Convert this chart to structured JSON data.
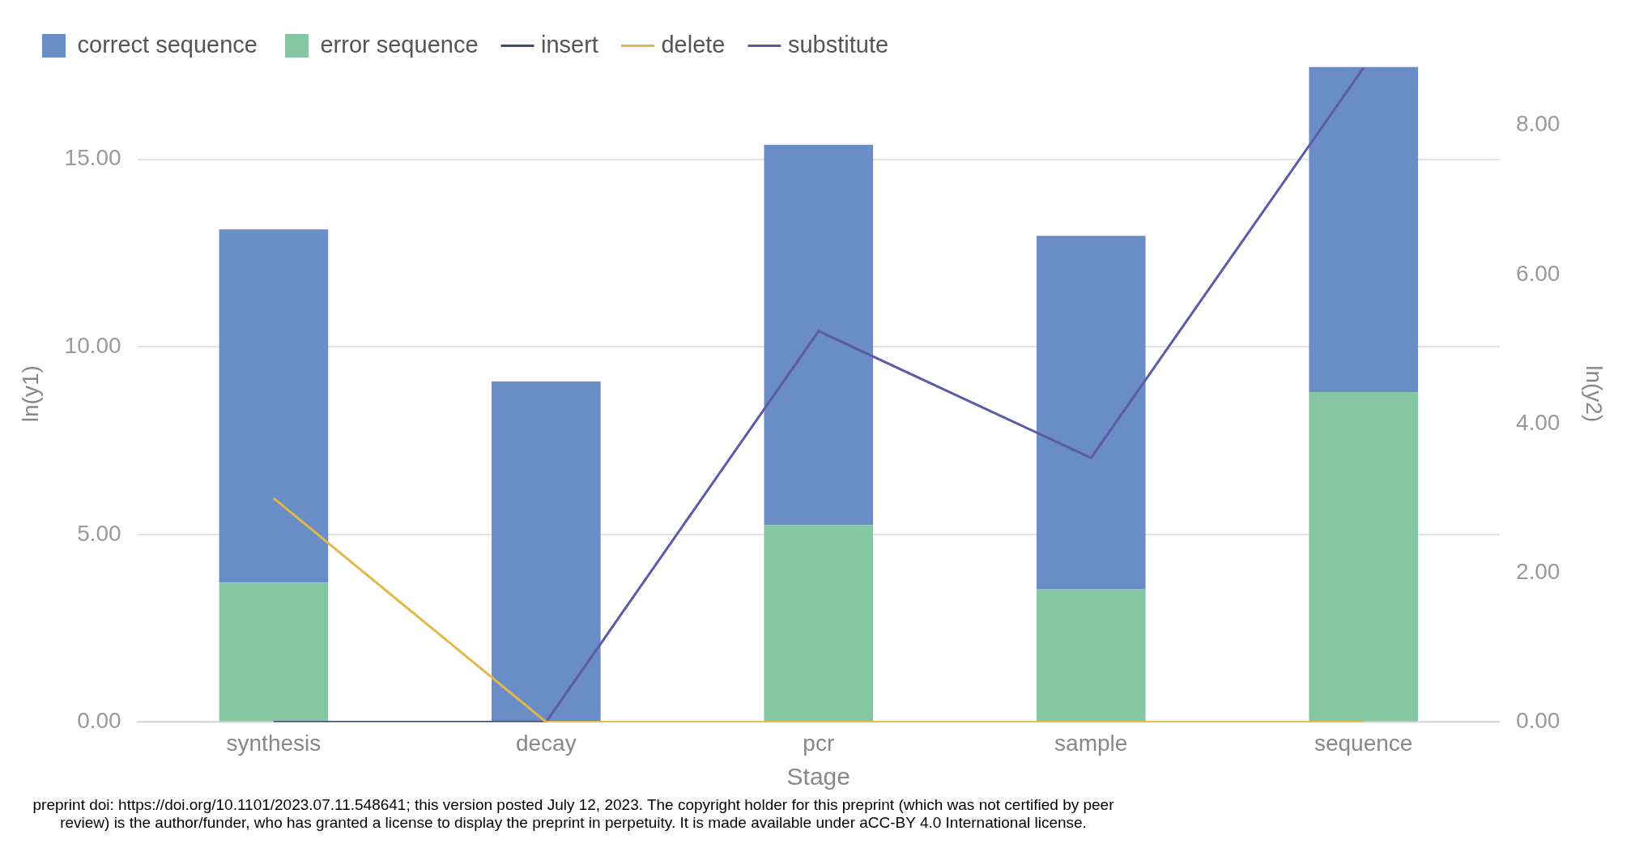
{
  "chart_data": {
    "type": "bar",
    "stacked": true,
    "categories": [
      "synthesis",
      "decay",
      "pcr",
      "sample",
      "sequence"
    ],
    "xlabel": "Stage",
    "ylabel": "ln(y1)",
    "y2label": "ln(y2)",
    "series": [
      {
        "name": "error sequence",
        "color": "#84c7a2",
        "values": [
          3.72,
          0,
          5.25,
          3.55,
          8.8
        ]
      },
      {
        "name": "correct sequence",
        "color": "#6a8cc7",
        "values": [
          9.41,
          9.08,
          10.14,
          9.41,
          8.66
        ]
      },
      {
        "name": "insert",
        "type": "line",
        "axis": "y2",
        "color": "#3d4a7a",
        "values": [
          0,
          0,
          null,
          null,
          null
        ]
      },
      {
        "name": "delete",
        "type": "line",
        "axis": "y2",
        "color": "#e3b84a",
        "values": [
          3.0,
          0,
          0,
          0,
          0
        ]
      },
      {
        "name": "substitute",
        "type": "line",
        "axis": "y2",
        "color": "#5b5ba8",
        "values": [
          null,
          0,
          5.24,
          3.54,
          8.77
        ]
      }
    ],
    "ylim": [
      0,
      17.5
    ],
    "yticks": [
      {
        "value": 0,
        "label": "0.00"
      },
      {
        "value": 5,
        "label": "5.00"
      },
      {
        "value": 10,
        "label": "10.00"
      },
      {
        "value": 15,
        "label": "15.00"
      }
    ],
    "y2lim": [
      0,
      8.8
    ],
    "y2ticks": [
      {
        "value": 0,
        "label": "0.00"
      },
      {
        "value": 2,
        "label": "2.00"
      },
      {
        "value": 4,
        "label": "4.00"
      },
      {
        "value": 6,
        "label": "6.00"
      },
      {
        "value": 8,
        "label": "8.00"
      }
    ],
    "grid": "y",
    "legend": "top left",
    "marker": "none",
    "annotations": [
      "preprint doi: https://doi.org/10.1101/2023.07.11.548641; this version posted July 12, 2023. The copyright holder for this preprint (which was not certified by peer review) is the author/funder, who has granted a license to display the preprint in perpetuity. It is made available under aCC-BY 4.0 International license."
    ]
  }
}
